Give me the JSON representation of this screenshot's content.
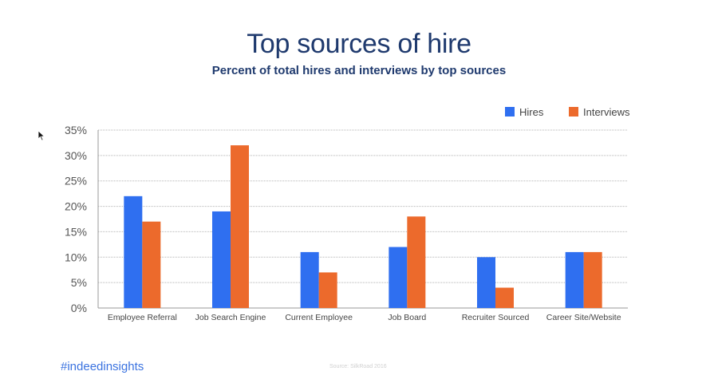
{
  "header": {
    "title": "Top sources of hire",
    "subtitle": "Percent of total hires and interviews by top sources"
  },
  "footer": {
    "hashtag": "#indeedinsights",
    "source": "Source: SilkRoad 2016"
  },
  "chart_data": {
    "type": "bar",
    "title": "Top sources of hire",
    "subtitle": "Percent of total hires and interviews by top sources",
    "xlabel": "",
    "ylabel": "",
    "categories": [
      "Employee Referral",
      "Job Search Engine",
      "Current Employee",
      "Job Board",
      "Recruiter Sourced",
      "Career Site/Website"
    ],
    "series": [
      {
        "name": "Hires",
        "color": "#2f6ff0",
        "values": [
          22,
          19,
          11,
          12,
          10,
          11
        ]
      },
      {
        "name": "Interviews",
        "color": "#ec6a2c",
        "values": [
          17,
          32,
          7,
          18,
          4,
          11
        ]
      }
    ],
    "ylim": [
      0,
      35
    ],
    "yticks": [
      0,
      5,
      10,
      15,
      20,
      25,
      30,
      35
    ],
    "ytick_labels": [
      "0%",
      "5%",
      "10%",
      "15%",
      "20%",
      "25%",
      "30%",
      "35%"
    ],
    "grid": true,
    "legend": "top-right"
  }
}
